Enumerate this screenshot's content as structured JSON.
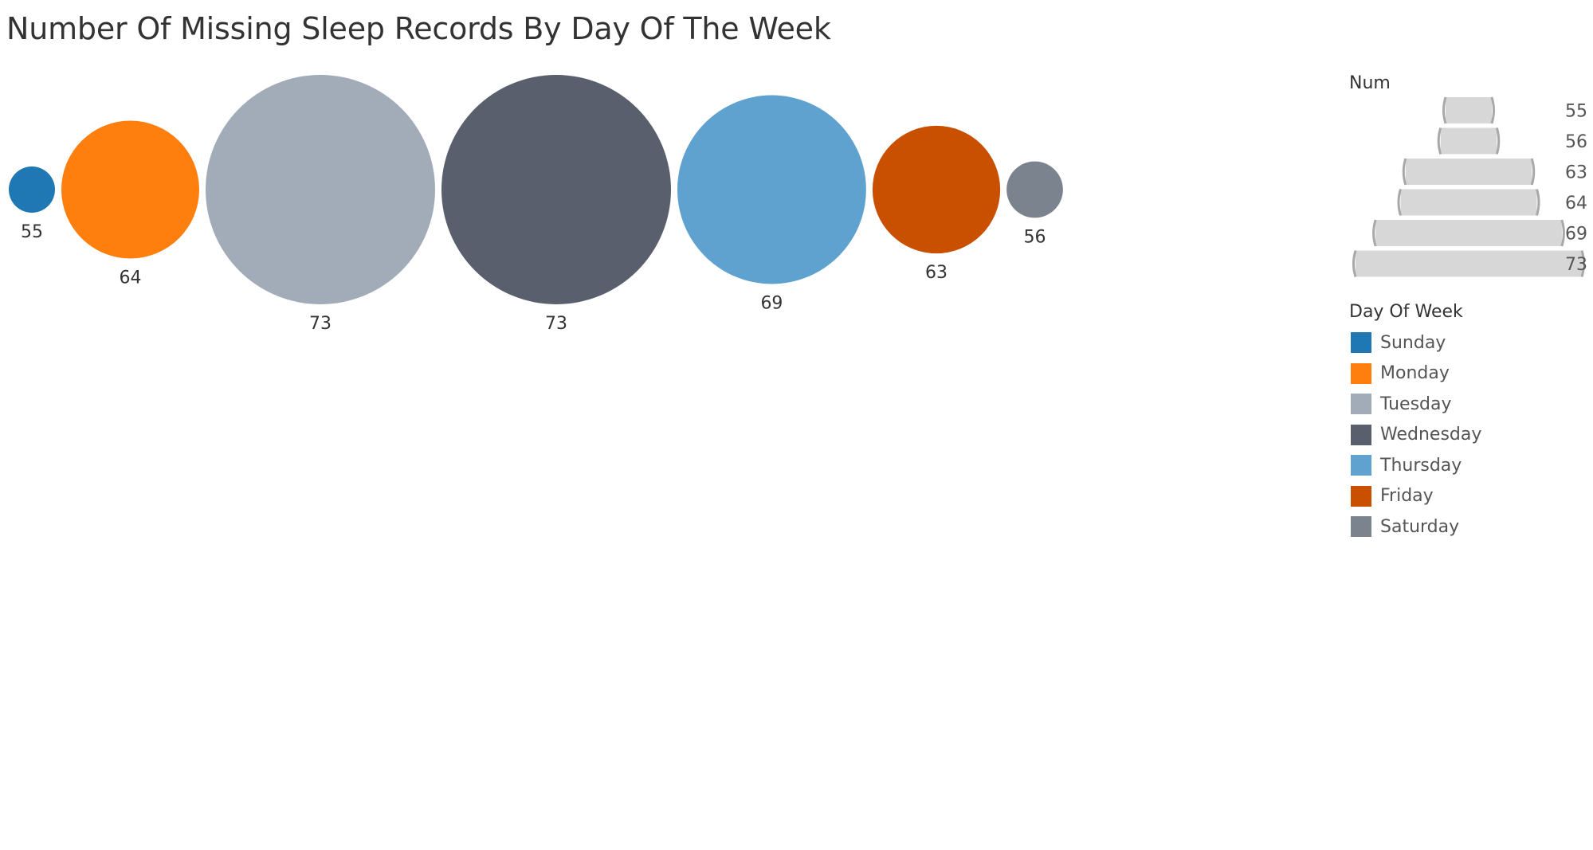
{
  "chart_data": {
    "type": "bubble",
    "title": "Number Of Missing Sleep Records By Day Of The Week",
    "categories": [
      "Sunday",
      "Monday",
      "Tuesday",
      "Wednesday",
      "Thursday",
      "Friday",
      "Saturday"
    ],
    "values": [
      55,
      64,
      73,
      73,
      69,
      63,
      56
    ],
    "colors": [
      "#1f77b4",
      "#ff7f0e",
      "#a2acb8",
      "#595f6c",
      "#5fa2d0",
      "#c85000",
      "#7b838f"
    ],
    "size_legend": {
      "title": "Num",
      "values": [
        55,
        56,
        63,
        64,
        69,
        73
      ]
    },
    "color_legend": {
      "title": "Day Of Week",
      "items": [
        "Sunday",
        "Monday",
        "Tuesday",
        "Wednesday",
        "Thursday",
        "Friday",
        "Saturday"
      ]
    }
  }
}
